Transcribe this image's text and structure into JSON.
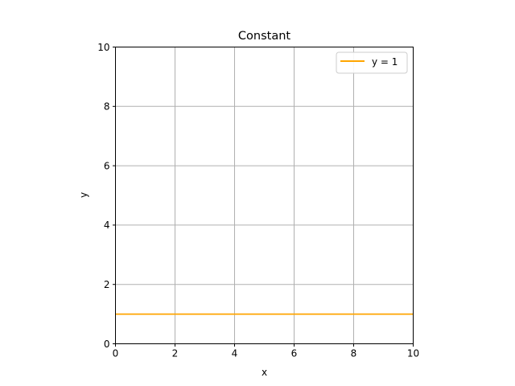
{
  "chart_data": {
    "type": "line",
    "title": "Constant",
    "xlabel": "x",
    "ylabel": "y",
    "xlim": [
      0,
      10
    ],
    "ylim": [
      0,
      10
    ],
    "xticks": [
      "0",
      "2",
      "4",
      "6",
      "8",
      "10"
    ],
    "yticks": [
      "0",
      "2",
      "4",
      "6",
      "8",
      "10"
    ],
    "grid": true,
    "legend_position": "top-right",
    "series": [
      {
        "name": "y = 1",
        "color": "#ffa500",
        "x": [
          0,
          10
        ],
        "y": [
          1,
          1
        ]
      }
    ]
  }
}
